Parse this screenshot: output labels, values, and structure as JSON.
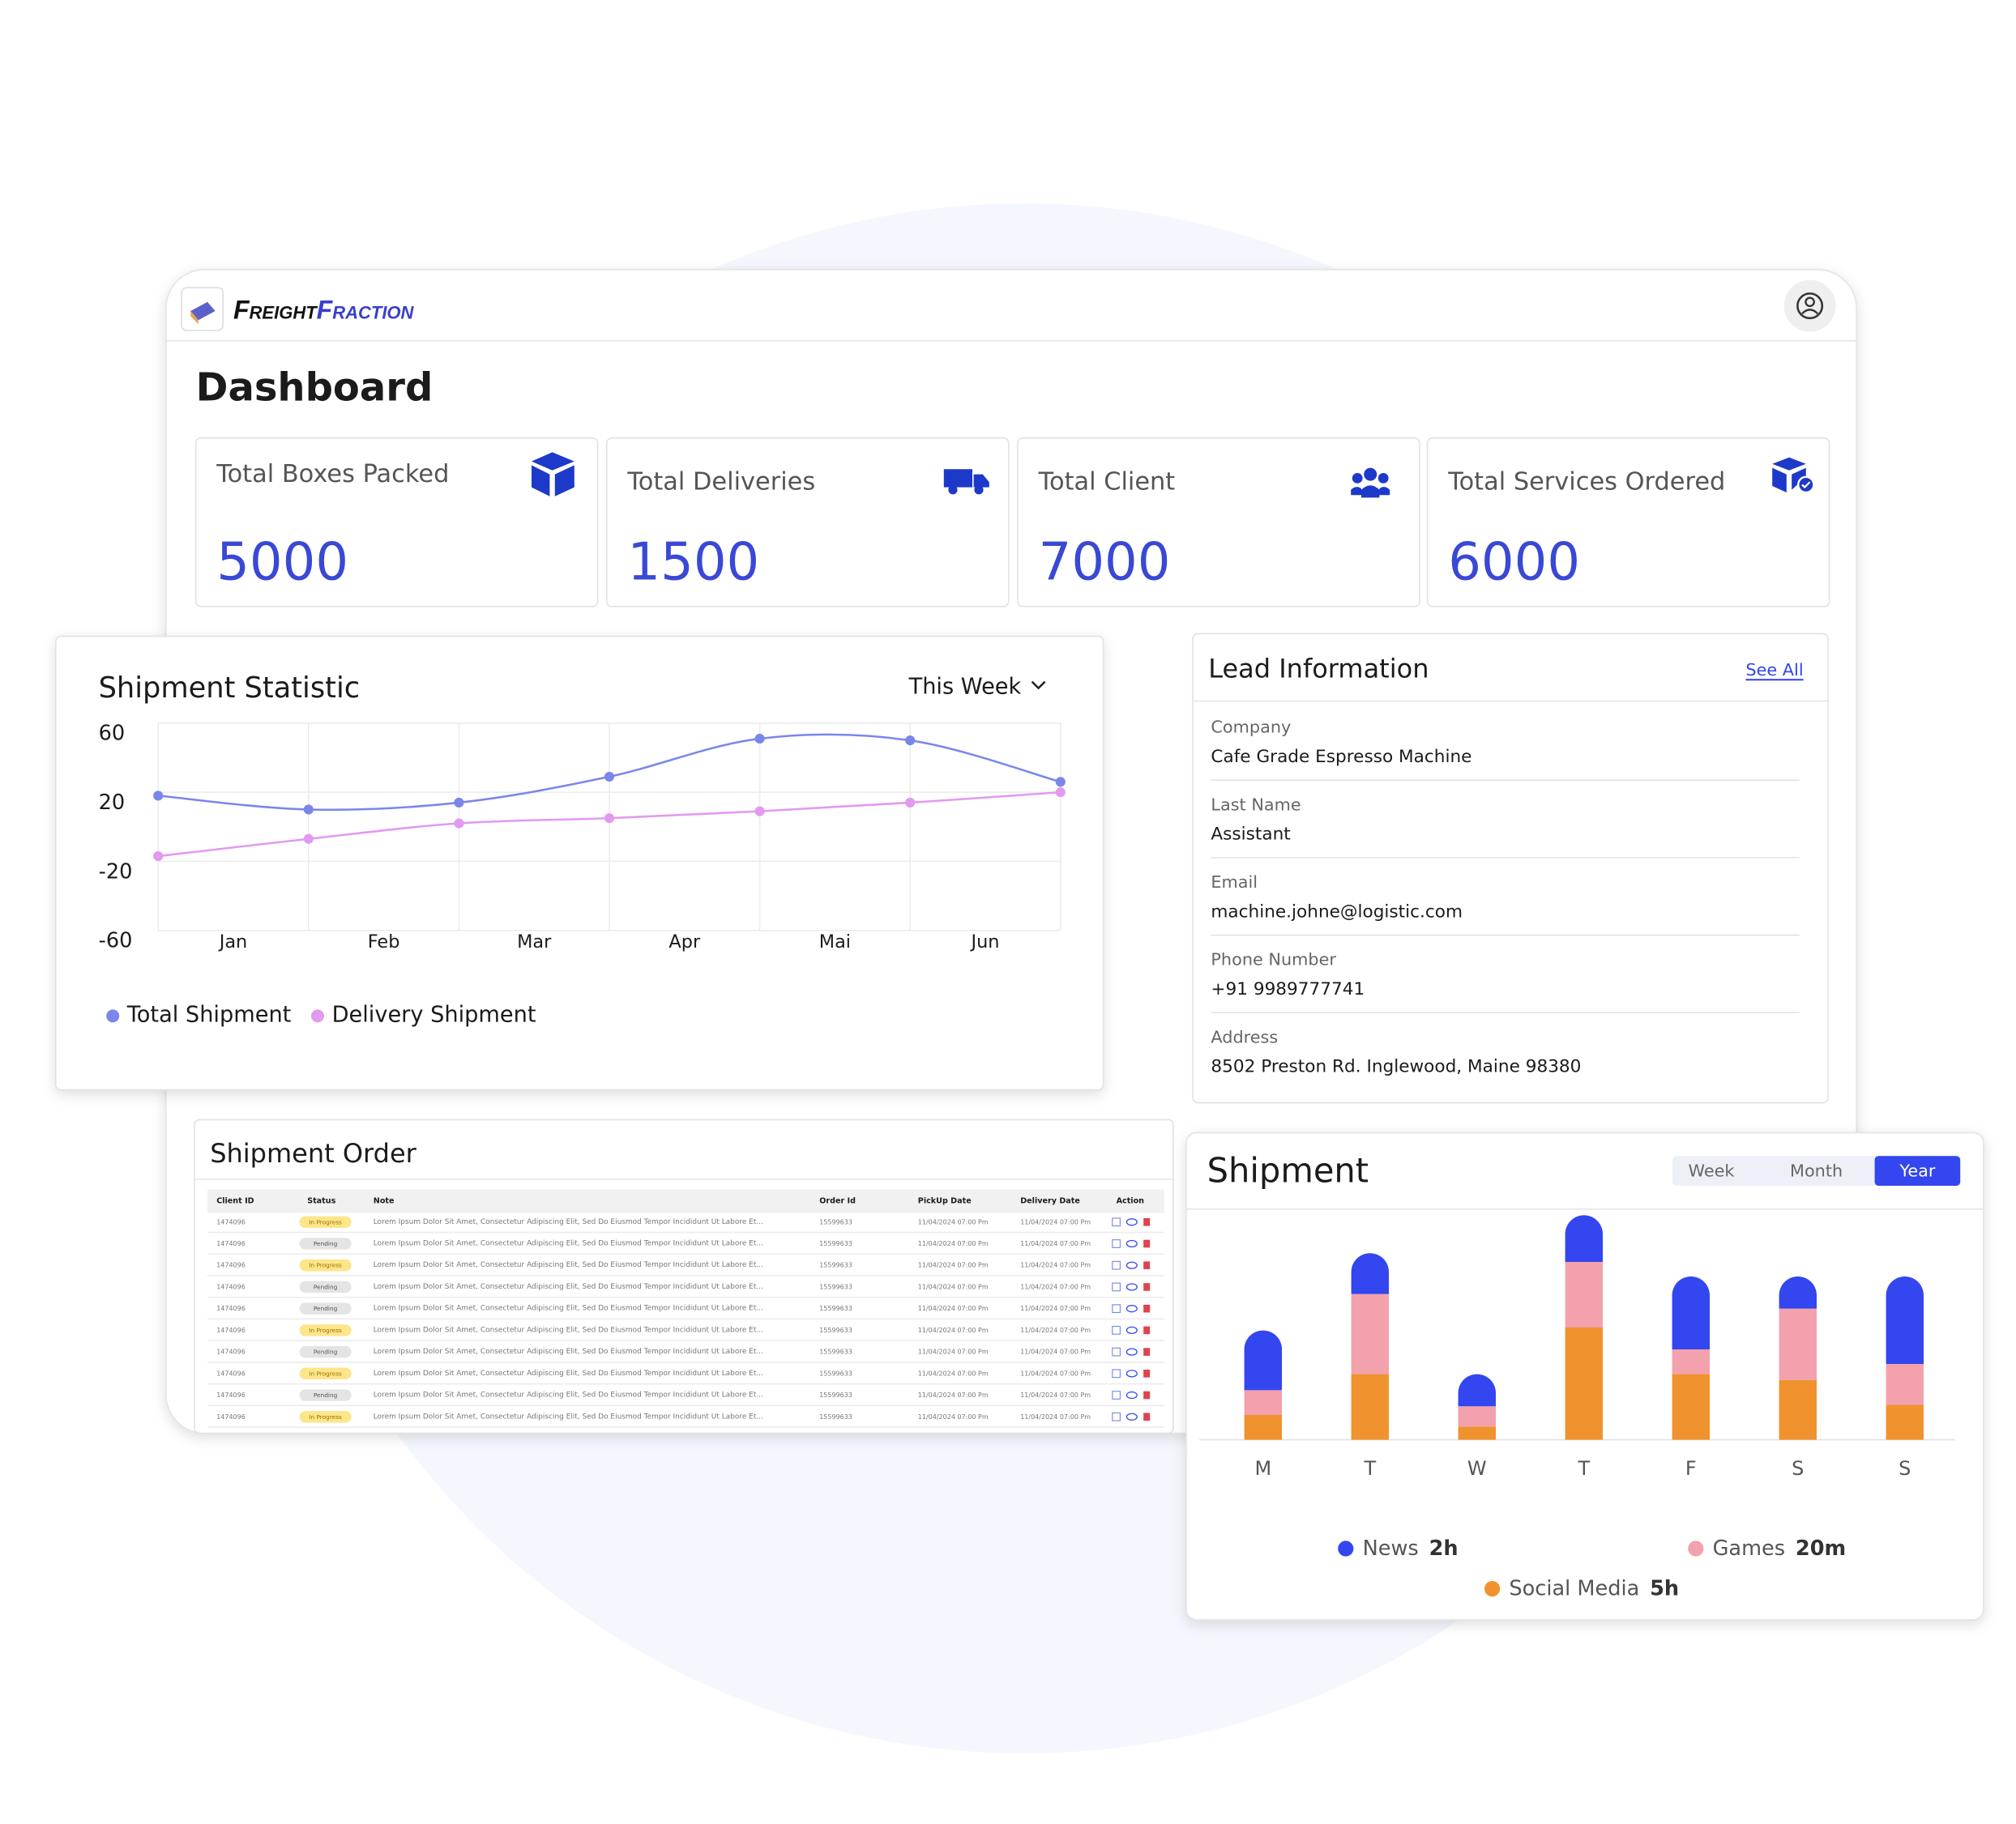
{
  "header": {
    "brand_first": "Freight",
    "brand_second": "Fraction"
  },
  "page_title": "Dashboard",
  "stats": [
    {
      "label": "Total Boxes Packed",
      "value": 5000
    },
    {
      "label": "Total Deliveries",
      "value": 1500
    },
    {
      "label": "Total Client",
      "value": 7000
    },
    {
      "label": "Total Services Ordered",
      "value": 6000
    }
  ],
  "chart_data": [
    {
      "type": "line",
      "title": "Shipment Statistic",
      "period": "This Week",
      "categories": [
        "Jan",
        "Feb",
        "Mar",
        "Apr",
        "Mai",
        "Jun",
        null
      ],
      "ylim": [
        -60,
        60
      ],
      "yticks": [
        60,
        20,
        -20,
        -60
      ],
      "grid": true,
      "series": [
        {
          "name": "Total Shipment",
          "color": "#7b86ea",
          "values": [
            18,
            10,
            14,
            29,
            51,
            50,
            26
          ]
        },
        {
          "name": "Delivery Shipment",
          "color": "#e29af0",
          "values": [
            -17,
            -7,
            2,
            5,
            9,
            14,
            20
          ]
        }
      ]
    },
    {
      "type": "bar",
      "stacked": true,
      "title": "Shipment",
      "tabs": [
        "Week",
        "Month",
        "Year"
      ],
      "active_tab": 2,
      "categories": [
        "M",
        "T",
        "W",
        "T",
        "F",
        "S",
        "S"
      ],
      "ylim": [
        0,
        160
      ],
      "series": [
        {
          "name": "Social Media",
          "legend_value": "5h",
          "color": "#f0922e",
          "values": [
            17,
            45,
            9,
            77,
            45,
            41,
            24
          ]
        },
        {
          "name": "Games",
          "legend_value": "20m",
          "color": "#f2a1ad",
          "values": [
            17,
            55,
            14,
            45,
            17,
            49,
            28
          ]
        },
        {
          "name": "News",
          "legend_value": "2h",
          "color": "#3346ef",
          "values": [
            41,
            28,
            22,
            32,
            50,
            22,
            60
          ]
        }
      ]
    }
  ],
  "lead_information": {
    "title": "Lead Information",
    "see_all": "See All",
    "fields": [
      {
        "label": "Company",
        "value": "Cafe Grade Espresso Machine"
      },
      {
        "label": "Last Name",
        "value": "Assistant"
      },
      {
        "label": "Email",
        "value": "machine.johne@logistic.com"
      },
      {
        "label": "Phone Number",
        "value": "+91 9989777741"
      },
      {
        "label": "Address",
        "value": "8502 Preston Rd. Inglewood, Maine 98380"
      }
    ]
  },
  "shipment_order": {
    "title": "Shipment Order",
    "columns": [
      "Client ID",
      "Status",
      "Note",
      "Order Id",
      "PickUp Date",
      "Delivery Date",
      "Action"
    ],
    "rows": [
      [
        "1474096",
        "In Progress",
        "Lorem Ipsum Dolor Sit Amet, Consectetur Adipiscing Elit, Sed Do Eiusmod Tempor Incididunt Ut Labore Et...",
        "15599633",
        "11/04/2024 07:00 Pm",
        "11/04/2024 07:00 Pm"
      ],
      [
        "1474096",
        "Pending",
        "Lorem Ipsum Dolor Sit Amet, Consectetur Adipiscing Elit, Sed Do Eiusmod Tempor Incididunt Ut Labore Et...",
        "15599633",
        "11/04/2024 07:00 Pm",
        "11/04/2024 07:00 Pm"
      ],
      [
        "1474096",
        "In Progress",
        "Lorem Ipsum Dolor Sit Amet, Consectetur Adipiscing Elit, Sed Do Eiusmod Tempor Incididunt Ut Labore Et...",
        "15599633",
        "11/04/2024 07:00 Pm",
        "11/04/2024 07:00 Pm"
      ],
      [
        "1474096",
        "Pending",
        "Lorem Ipsum Dolor Sit Amet, Consectetur Adipiscing Elit, Sed Do Eiusmod Tempor Incididunt Ut Labore Et...",
        "15599633",
        "11/04/2024 07:00 Pm",
        "11/04/2024 07:00 Pm"
      ],
      [
        "1474096",
        "Pending",
        "Lorem Ipsum Dolor Sit Amet, Consectetur Adipiscing Elit, Sed Do Eiusmod Tempor Incididunt Ut Labore Et...",
        "15599633",
        "11/04/2024 07:00 Pm",
        "11/04/2024 07:00 Pm"
      ],
      [
        "1474096",
        "In Progress",
        "Lorem Ipsum Dolor Sit Amet, Consectetur Adipiscing Elit, Sed Do Eiusmod Tempor Incididunt Ut Labore Et...",
        "15599633",
        "11/04/2024 07:00 Pm",
        "11/04/2024 07:00 Pm"
      ],
      [
        "1474096",
        "Pending",
        "Lorem Ipsum Dolor Sit Amet, Consectetur Adipiscing Elit, Sed Do Eiusmod Tempor Incididunt Ut Labore Et...",
        "15599633",
        "11/04/2024 07:00 Pm",
        "11/04/2024 07:00 Pm"
      ],
      [
        "1474096",
        "In Progress",
        "Lorem Ipsum Dolor Sit Amet, Consectetur Adipiscing Elit, Sed Do Eiusmod Tempor Incididunt Ut Labore Et...",
        "15599633",
        "11/04/2024 07:00 Pm",
        "11/04/2024 07:00 Pm"
      ],
      [
        "1474096",
        "Pending",
        "Lorem Ipsum Dolor Sit Amet, Consectetur Adipiscing Elit, Sed Do Eiusmod Tempor Incididunt Ut Labore Et...",
        "15599633",
        "11/04/2024 07:00 Pm",
        "11/04/2024 07:00 Pm"
      ],
      [
        "1474096",
        "In Progress",
        "Lorem Ipsum Dolor Sit Amet, Consectetur Adipiscing Elit, Sed Do Eiusmod Tempor Incididunt Ut Labore Et...",
        "15599633",
        "11/04/2024 07:00 Pm",
        "11/04/2024 07:00 Pm"
      ]
    ]
  }
}
